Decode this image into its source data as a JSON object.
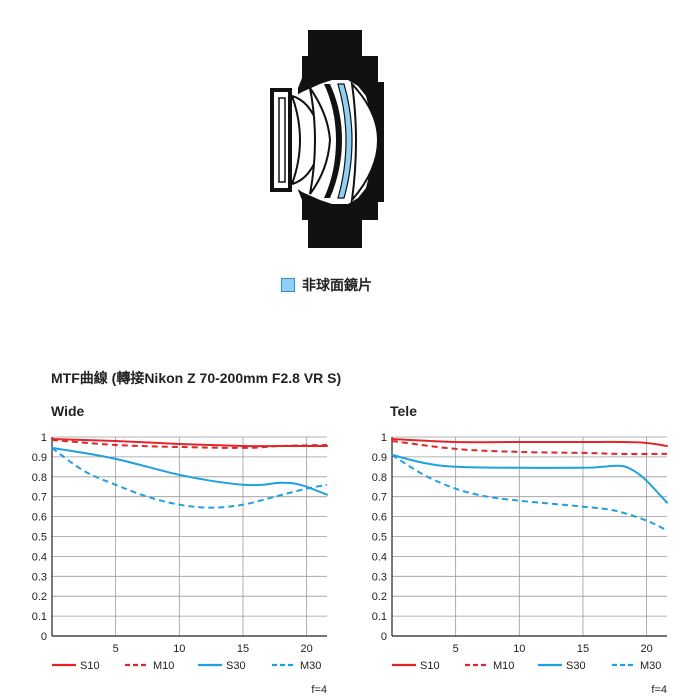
{
  "legend": {
    "aspheric_label": "非球面鏡片",
    "aspheric_color": "#8fd0f5"
  },
  "mtf_title": "MTF曲線 (轉接Nikon Z 70-200mm F2.8 VR S)",
  "style": {
    "red": "#e0262a",
    "blue": "#20a0e0",
    "grid": "#9a9a9a"
  },
  "chart_data": [
    {
      "type": "line",
      "title": "Wide",
      "xlim": [
        0,
        21.6
      ],
      "ylim": [
        0,
        1
      ],
      "x_ticks": [
        5,
        10,
        15,
        20
      ],
      "y_ticks": [
        0,
        0.1,
        0.2,
        0.3,
        0.4,
        0.5,
        0.6,
        0.7,
        0.8,
        0.9,
        1
      ],
      "y_tick_labels": [
        "0",
        "0.1",
        "0.2",
        "0.3",
        "0.4",
        "0.5",
        "0.6",
        "0.7",
        "0.8",
        "0.9",
        "1"
      ],
      "grid": true,
      "legend_position": "bottom",
      "note": "f=4",
      "series": [
        {
          "name": "S10",
          "color": "red",
          "dash": false,
          "x": [
            0,
            5,
            10,
            15,
            18,
            21.6
          ],
          "y": [
            0.99,
            0.98,
            0.965,
            0.955,
            0.955,
            0.955
          ]
        },
        {
          "name": "M10",
          "color": "red",
          "dash": true,
          "x": [
            0,
            5,
            10,
            15,
            18,
            21.6
          ],
          "y": [
            0.985,
            0.96,
            0.95,
            0.945,
            0.955,
            0.96
          ]
        },
        {
          "name": "S30",
          "color": "blue",
          "dash": false,
          "x": [
            0,
            2.5,
            5,
            7.5,
            10,
            12.5,
            15,
            16.5,
            18,
            19.5,
            21.6
          ],
          "y": [
            0.945,
            0.92,
            0.89,
            0.85,
            0.81,
            0.78,
            0.76,
            0.76,
            0.77,
            0.76,
            0.71
          ]
        },
        {
          "name": "M30",
          "color": "blue",
          "dash": true,
          "x": [
            0,
            2.5,
            5,
            7.5,
            10,
            12.5,
            15,
            17.5,
            20,
            21.6
          ],
          "y": [
            0.945,
            0.83,
            0.76,
            0.7,
            0.66,
            0.645,
            0.66,
            0.7,
            0.74,
            0.76
          ]
        }
      ]
    },
    {
      "type": "line",
      "title": "Tele",
      "xlim": [
        0,
        21.6
      ],
      "ylim": [
        0,
        1
      ],
      "x_ticks": [
        5,
        10,
        15,
        20
      ],
      "y_ticks": [
        0,
        0.1,
        0.2,
        0.3,
        0.4,
        0.5,
        0.6,
        0.7,
        0.8,
        0.9,
        1
      ],
      "y_tick_labels": [
        "0",
        "0.1",
        "0.2",
        "0.3",
        "0.4",
        "0.5",
        "0.6",
        "0.7",
        "0.8",
        "0.9",
        "1"
      ],
      "grid": true,
      "legend_position": "bottom",
      "note": "f=4",
      "series": [
        {
          "name": "S10",
          "color": "red",
          "dash": false,
          "x": [
            0,
            5,
            10,
            15,
            18,
            20,
            21.6
          ],
          "y": [
            0.99,
            0.975,
            0.975,
            0.975,
            0.975,
            0.97,
            0.955
          ]
        },
        {
          "name": "M10",
          "color": "red",
          "dash": true,
          "x": [
            0,
            5,
            10,
            15,
            18,
            21.6
          ],
          "y": [
            0.98,
            0.94,
            0.925,
            0.92,
            0.915,
            0.915
          ]
        },
        {
          "name": "S30",
          "color": "blue",
          "dash": false,
          "x": [
            0,
            2.5,
            5,
            10,
            15,
            16.5,
            18,
            19,
            20,
            21.6
          ],
          "y": [
            0.91,
            0.87,
            0.85,
            0.845,
            0.845,
            0.85,
            0.855,
            0.83,
            0.78,
            0.67
          ]
        },
        {
          "name": "M30",
          "color": "blue",
          "dash": true,
          "x": [
            0,
            2.5,
            5,
            7.5,
            10,
            12.5,
            15,
            17.5,
            20,
            21.6
          ],
          "y": [
            0.91,
            0.81,
            0.74,
            0.7,
            0.68,
            0.665,
            0.65,
            0.63,
            0.58,
            0.53
          ]
        }
      ]
    }
  ]
}
